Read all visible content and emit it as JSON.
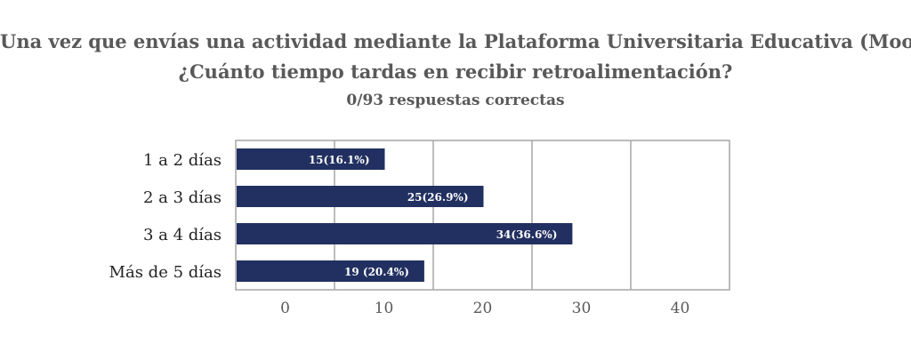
{
  "title_line1": "Una vez que envías una actividad mediante la Plataforma Universitaria Educativa (Moodle)",
  "title_line2": "¿Cuánto tiempo tardas en recibir retroalimentación?",
  "subtitle": "0/93 respuestas correctas",
  "colors": {
    "bar": "#223061",
    "grid": "#a6a6a6",
    "title": "#595959",
    "label": "#222222"
  },
  "chart_data": {
    "type": "bar",
    "orientation": "horizontal",
    "categories": [
      "1 a 2 días",
      "2 a 3 días",
      "3 a 4 días",
      "Más de 5 días"
    ],
    "values": [
      15,
      25,
      34,
      19
    ],
    "data_labels": [
      "15(16.1%)",
      "25(26.9%)",
      "34(36.6%)",
      "19 (20.4%)"
    ],
    "x_ticks": [
      "0",
      "10",
      "20",
      "30",
      "40"
    ],
    "xlim": [
      0,
      50
    ],
    "grid": true
  }
}
